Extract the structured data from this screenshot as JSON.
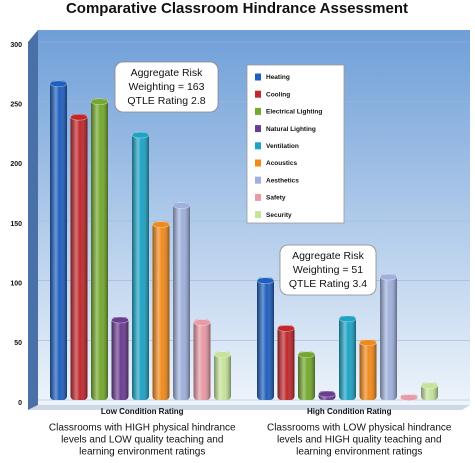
{
  "chart_data": {
    "type": "bar",
    "title": "Comparative Classroom Hindrance Assessment",
    "categories": [
      "Low Condition Rating",
      "High Condition Rating"
    ],
    "category_notes": [
      [
        "Classrooms with HIGH physical hindrance",
        "levels and LOW quality teaching and",
        "learning environment ratings"
      ],
      [
        "Classrooms with LOW physical hindrance",
        "levels and HIGH quality teaching and",
        "learning environment ratings"
      ]
    ],
    "annotations": [
      [
        "Aggregate Risk",
        "Weighting = 163",
        "QTLE Rating 2.8"
      ],
      [
        "Aggregate Risk",
        "Weighting = 51",
        "QTLE Rating 3.4"
      ]
    ],
    "series": [
      {
        "name": "Heating",
        "color": "#1f5fbf",
        "values": [
          265,
          100
        ]
      },
      {
        "name": "Cooling",
        "color": "#c0282c",
        "values": [
          237,
          60
        ]
      },
      {
        "name": "Electrical Lighting",
        "color": "#74a82e",
        "values": [
          250,
          38
        ]
      },
      {
        "name": "Natural Lighting",
        "color": "#6b3d91",
        "values": [
          67,
          5
        ]
      },
      {
        "name": "Ventilation",
        "color": "#1ea3c4",
        "values": [
          222,
          68
        ]
      },
      {
        "name": "Acoustics",
        "color": "#f08a1c",
        "values": [
          147,
          48
        ]
      },
      {
        "name": "Aesthetics",
        "color": "#9fb0dc",
        "values": [
          163,
          103
        ]
      },
      {
        "name": "Safety",
        "color": "#e89aa6",
        "values": [
          65,
          2
        ]
      },
      {
        "name": "Security",
        "color": "#c6e39a",
        "values": [
          38,
          12
        ]
      }
    ],
    "ylim": [
      0,
      300
    ],
    "yticks": [
      0,
      50,
      100,
      150,
      200,
      250,
      300
    ],
    "grid": true,
    "legend_position": "top-right"
  }
}
